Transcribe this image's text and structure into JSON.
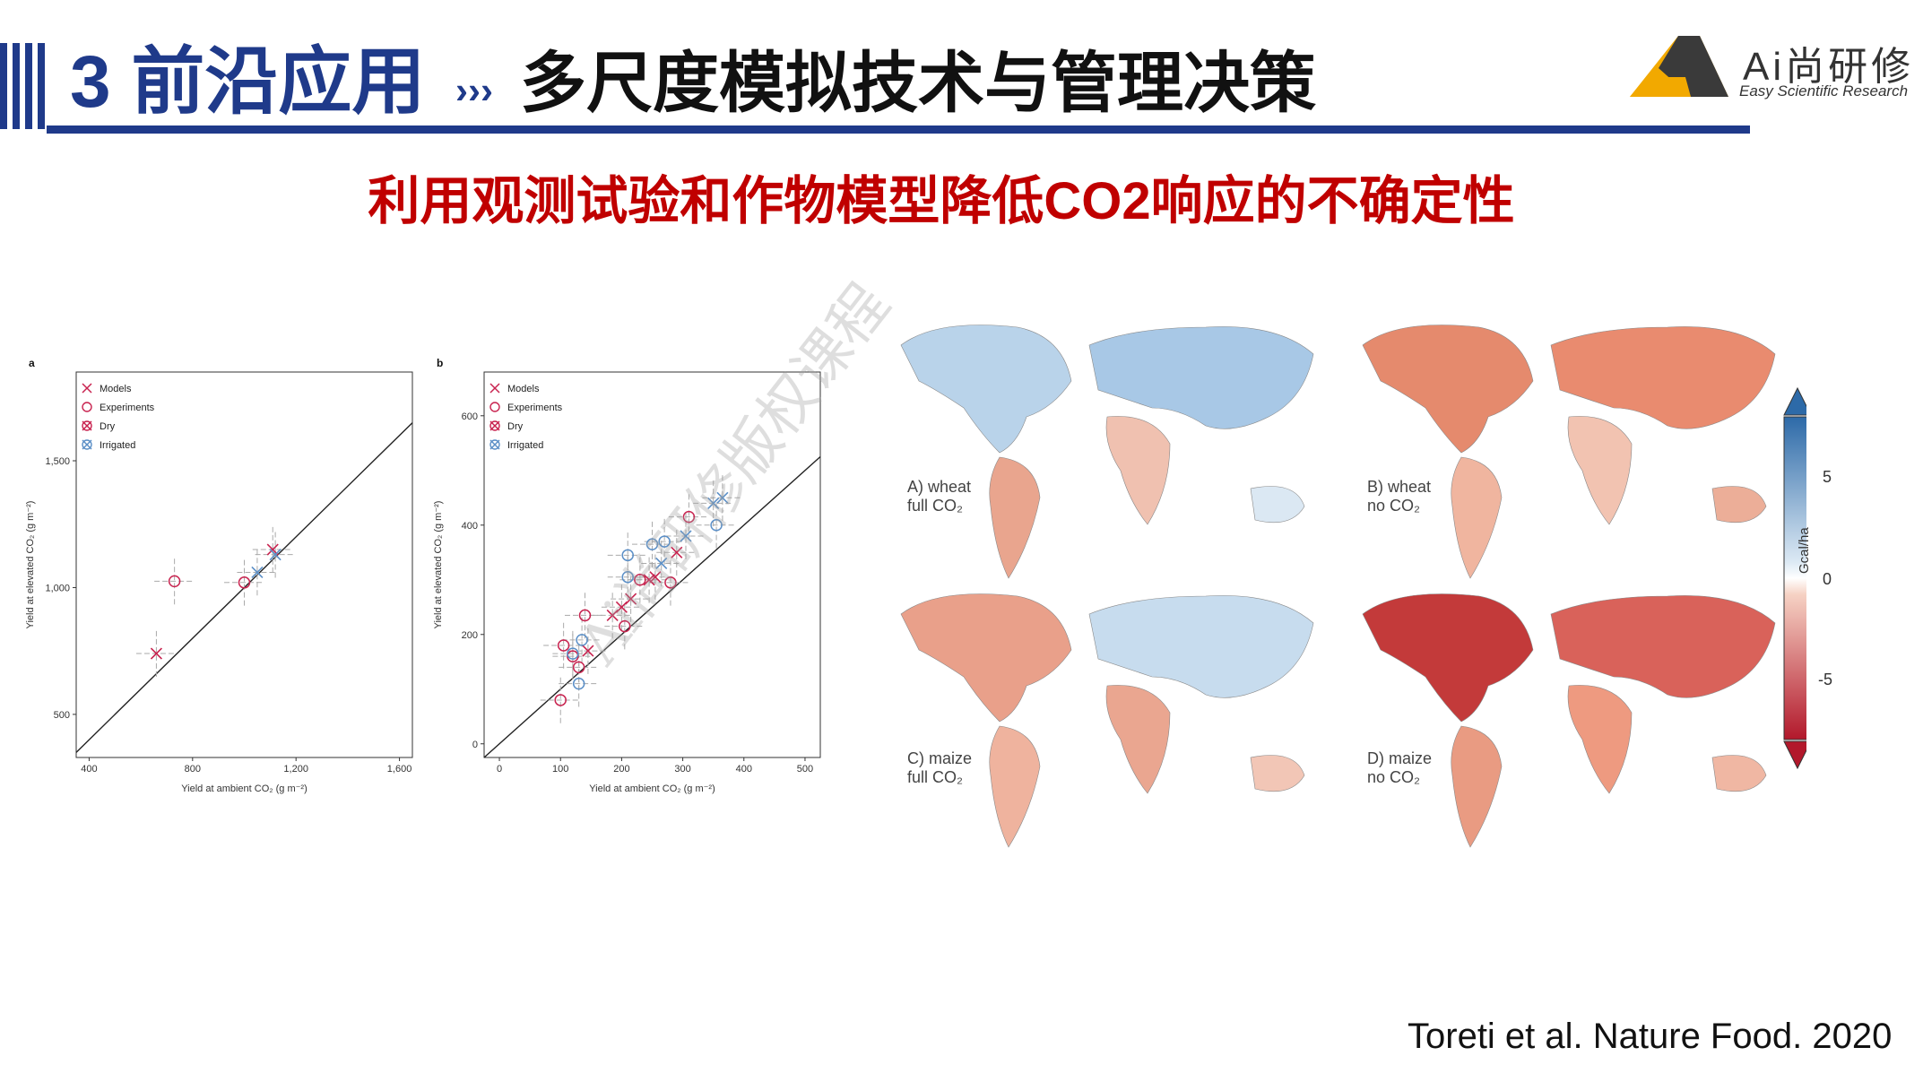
{
  "header": {
    "number": "3",
    "title": "前沿应用",
    "arrow": "›››",
    "subtitle": "多尺度模拟技术与管理决策"
  },
  "logo": {
    "main": "Ai尚研修",
    "sub": "Easy Scientific Research"
  },
  "slide_subtitle": "利用观测试验和作物模型降低CO2响应的不确定性",
  "citation": "Toreti et al. Nature Food. 2020",
  "watermark": "Ai尚研修版权课程",
  "colors": {
    "brand_blue": "#1f3a8a",
    "title_red": "#c00000",
    "models": "#c8234f",
    "irrigated": "#5b8fc7"
  },
  "legend": {
    "models": "Models",
    "experiments": "Experiments",
    "dry": "Dry",
    "irrigated": "Irrigated"
  },
  "chart_data": [
    {
      "type": "scatter",
      "panel_label": "a",
      "xlabel": "Yield at ambient CO₂ (g m⁻²)",
      "ylabel": "Yield at elevated CO₂ (g m⁻²)",
      "xlim": [
        350,
        1650
      ],
      "ylim": [
        330,
        1850
      ],
      "xticks": [
        "400",
        "800",
        "1,200",
        "1,600"
      ],
      "yticks": [
        "500",
        "1,000",
        "1,500"
      ],
      "series": [
        {
          "name": "Models",
          "marker": "x",
          "color": "#c8234f",
          "points": [
            [
              660,
              740
            ],
            [
              1110,
              1150
            ]
          ]
        },
        {
          "name": "Experiments",
          "marker": "o",
          "color": "#c8234f",
          "points": [
            [
              730,
              1025
            ],
            [
              1000,
              1020
            ]
          ]
        },
        {
          "name": "Irrigated",
          "marker": "x",
          "color": "#5b8fc7",
          "points": [
            [
              1050,
              1060
            ],
            [
              1120,
              1130
            ]
          ]
        }
      ],
      "reference_line": "1:1"
    },
    {
      "type": "scatter",
      "panel_label": "b",
      "xlabel": "Yield at ambient CO₂ (g m⁻²)",
      "ylabel": "Yield at elevated CO₂ (g m⁻²)",
      "xlim": [
        -25,
        525
      ],
      "ylim": [
        -25,
        680
      ],
      "xticks": [
        "0",
        "100",
        "200",
        "300",
        "400",
        "500"
      ],
      "yticks": [
        "0",
        "200",
        "400",
        "600"
      ],
      "series": [
        {
          "name": "Models",
          "marker": "x",
          "color": "#c8234f",
          "points": [
            [
              185,
              235
            ],
            [
              200,
              250
            ],
            [
              215,
              265
            ],
            [
              245,
              300
            ],
            [
              255,
              305
            ],
            [
              290,
              350
            ],
            [
              145,
              170
            ]
          ]
        },
        {
          "name": "Experiments",
          "marker": "o",
          "color": "#c8234f",
          "points": [
            [
              105,
              180
            ],
            [
              100,
              80
            ],
            [
              130,
              140
            ],
            [
              140,
              235
            ],
            [
              205,
              215
            ],
            [
              230,
              300
            ],
            [
              280,
              295
            ],
            [
              310,
              415
            ],
            [
              120,
              160
            ]
          ]
        },
        {
          "name": "Irrigated",
          "marker": "o",
          "color": "#5b8fc7",
          "points": [
            [
              130,
              110
            ],
            [
              135,
              190
            ],
            [
              120,
              165
            ],
            [
              210,
              345
            ],
            [
              250,
              365
            ],
            [
              270,
              370
            ],
            [
              355,
              400
            ],
            [
              210,
              305
            ]
          ]
        },
        {
          "name": "Irrigated",
          "marker": "x",
          "color": "#5b8fc7",
          "points": [
            [
              305,
              380
            ],
            [
              350,
              440
            ],
            [
              365,
              450
            ],
            [
              265,
              330
            ]
          ]
        }
      ],
      "reference_line": "1:1"
    }
  ],
  "maps": {
    "panels": [
      {
        "line1": "A) wheat",
        "line2": "full CO₂"
      },
      {
        "line1": "B) wheat",
        "line2": "no CO₂"
      },
      {
        "line1": "C) maize",
        "line2": "full CO₂"
      },
      {
        "line1": "D) maize",
        "line2": "no CO₂"
      }
    ],
    "colorbar": {
      "label": "Gcal/ha",
      "ticks": [
        "5",
        "0",
        "-5"
      ],
      "min": -8,
      "max": 8
    }
  }
}
